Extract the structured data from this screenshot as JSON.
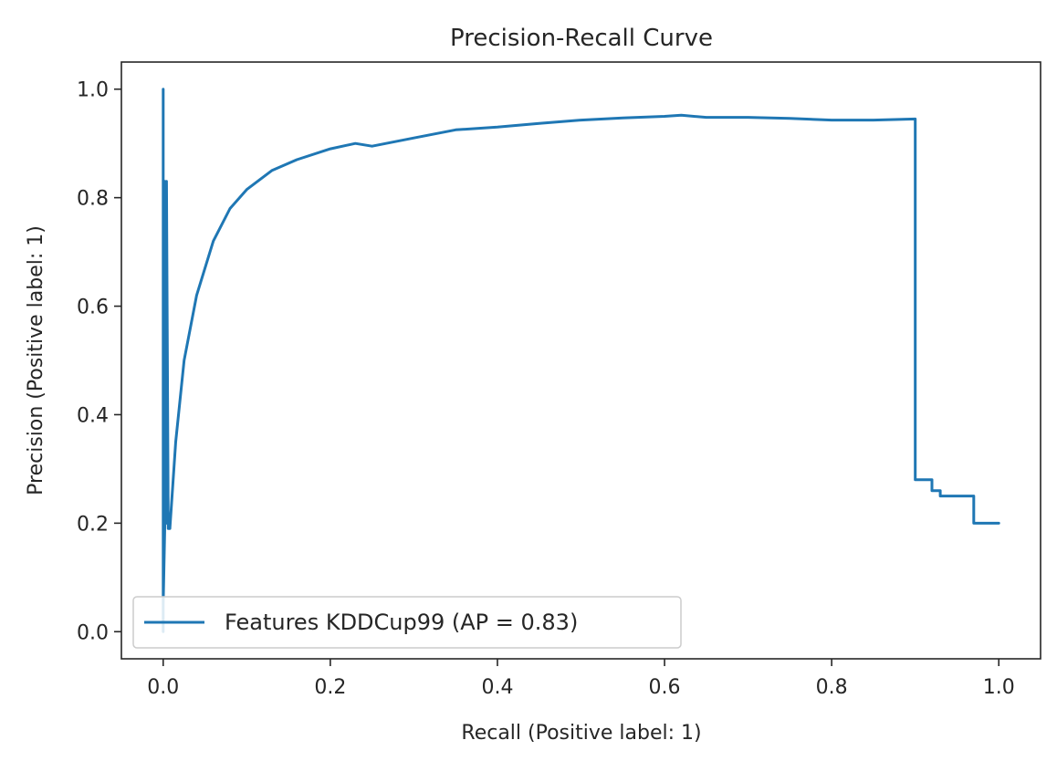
{
  "chart_data": {
    "type": "line",
    "title": "Precision-Recall Curve",
    "xlabel": "Recall (Positive label: 1)",
    "ylabel": "Precision (Positive label: 1)",
    "xlim": [
      -0.05,
      1.05
    ],
    "ylim": [
      -0.05,
      1.05
    ],
    "xticks": [
      0.0,
      0.2,
      0.4,
      0.6,
      0.8,
      1.0
    ],
    "xtick_labels": [
      "0.0",
      "0.2",
      "0.4",
      "0.6",
      "0.8",
      "1.0"
    ],
    "yticks": [
      0.0,
      0.2,
      0.4,
      0.6,
      0.8,
      1.0
    ],
    "ytick_labels": [
      "0.0",
      "0.2",
      "0.4",
      "0.6",
      "0.8",
      "1.0"
    ],
    "grid": false,
    "legend_position": "lower-left",
    "series": [
      {
        "name": "Features KDDCup99 (AP = 0.83)",
        "color": "#1f77b4",
        "x": [
          0.0,
          0.0,
          0.0,
          0.002,
          0.002,
          0.004,
          0.004,
          0.006,
          0.006,
          0.008,
          0.015,
          0.025,
          0.04,
          0.06,
          0.08,
          0.1,
          0.13,
          0.16,
          0.2,
          0.23,
          0.25,
          0.3,
          0.35,
          0.4,
          0.45,
          0.5,
          0.55,
          0.6,
          0.62,
          0.65,
          0.7,
          0.75,
          0.8,
          0.85,
          0.9,
          0.9,
          0.9,
          0.92,
          0.92,
          0.93,
          0.93,
          0.95,
          0.95,
          0.97,
          0.97,
          0.98,
          0.98,
          1.0
        ],
        "y": [
          0.0,
          1.0,
          0.05,
          0.2,
          0.83,
          0.2,
          0.83,
          0.2,
          0.19,
          0.19,
          0.35,
          0.5,
          0.62,
          0.72,
          0.78,
          0.815,
          0.85,
          0.87,
          0.89,
          0.9,
          0.895,
          0.91,
          0.925,
          0.93,
          0.937,
          0.943,
          0.947,
          0.95,
          0.952,
          0.948,
          0.948,
          0.946,
          0.943,
          0.943,
          0.945,
          0.945,
          0.28,
          0.28,
          0.26,
          0.26,
          0.25,
          0.25,
          0.25,
          0.25,
          0.2,
          0.2,
          0.2,
          0.2
        ]
      }
    ]
  }
}
